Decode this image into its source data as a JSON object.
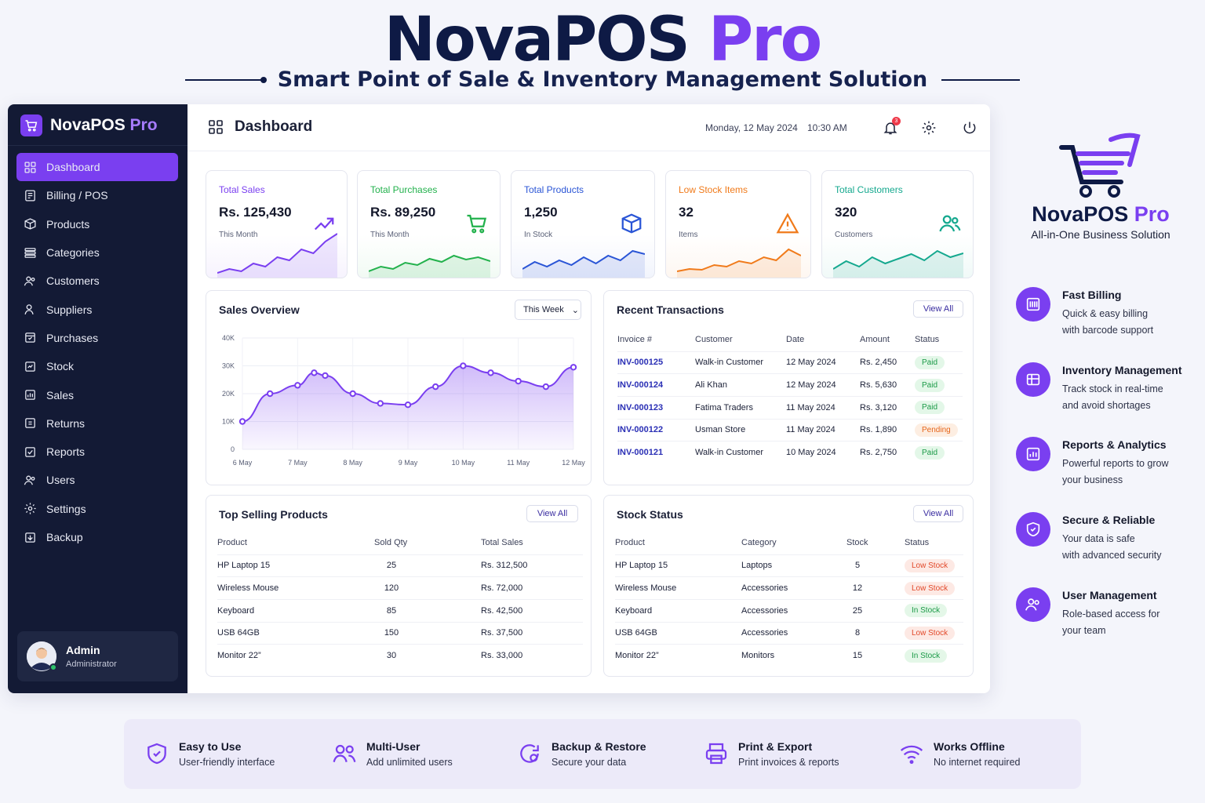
{
  "hero": {
    "title_main": "NovaPOS",
    "title_accent": "Pro",
    "subtitle": "Smart Point of Sale & Inventory Management Solution"
  },
  "sidebar": {
    "brand_main": "NovaPOS",
    "brand_accent": "Pro",
    "items": [
      {
        "label": "Dashboard",
        "icon": "dashboard-icon"
      },
      {
        "label": "Billing / POS",
        "icon": "billing-icon"
      },
      {
        "label": "Products",
        "icon": "box-icon"
      },
      {
        "label": "Categories",
        "icon": "categories-icon"
      },
      {
        "label": "Customers",
        "icon": "customers-icon"
      },
      {
        "label": "Suppliers",
        "icon": "suppliers-icon"
      },
      {
        "label": "Purchases",
        "icon": "purchases-icon"
      },
      {
        "label": "Stock",
        "icon": "stock-icon"
      },
      {
        "label": "Sales",
        "icon": "sales-icon"
      },
      {
        "label": "Returns",
        "icon": "returns-icon"
      },
      {
        "label": "Reports",
        "icon": "reports-icon"
      },
      {
        "label": "Users",
        "icon": "users-icon"
      },
      {
        "label": "Settings",
        "icon": "gear-icon"
      },
      {
        "label": "Backup",
        "icon": "backup-icon"
      }
    ],
    "user": {
      "name": "Admin",
      "role": "Administrator"
    }
  },
  "topbar": {
    "title": "Dashboard",
    "date": "Monday, 12 May 2024",
    "time": "10:30 AM",
    "notification_count": "3"
  },
  "kpis": [
    {
      "label": "Total Sales",
      "value": "Rs. 125,430",
      "caption": "This Month",
      "color": "#7a3ff0"
    },
    {
      "label": "Total Purchases",
      "value": "Rs. 89,250",
      "caption": "This Month",
      "color": "#22b14c"
    },
    {
      "label": "Total Products",
      "value": "1,250",
      "caption": "In Stock",
      "color": "#2a55d6"
    },
    {
      "label": "Low Stock Items",
      "value": "32",
      "caption": "Items",
      "color": "#f07a1a"
    },
    {
      "label": "Total Customers",
      "value": "320",
      "caption": "Customers",
      "color": "#14a88e"
    }
  ],
  "sales_overview": {
    "title": "Sales Overview",
    "range": "This Week"
  },
  "chart_data": {
    "type": "area",
    "title": "Sales Overview",
    "xlabel": "",
    "ylabel": "",
    "x_tick_labels": [
      "6 May",
      "7 May",
      "8 May",
      "9 May",
      "10 May",
      "11 May",
      "12 May"
    ],
    "y_tick_labels": [
      "40K",
      "30K",
      "20K",
      "10K",
      "0"
    ],
    "ylim": [
      0,
      40000
    ],
    "x": [
      6,
      6.5,
      7,
      7.3,
      7.5,
      8,
      8.5,
      9,
      9.5,
      10,
      10.5,
      11,
      11.5,
      12
    ],
    "values": [
      10000,
      20000,
      23000,
      27500,
      26500,
      20000,
      16500,
      16000,
      22500,
      30000,
      27500,
      24500,
      22500,
      29500
    ],
    "grid": true,
    "legend": "none",
    "color": "#7a3ff0"
  },
  "transactions": {
    "title": "Recent Transactions",
    "view_all": "View All",
    "columns": [
      "Invoice #",
      "Customer",
      "Date",
      "Amount",
      "Status"
    ],
    "rows": [
      {
        "invoice": "INV-000125",
        "customer": "Walk-in Customer",
        "date": "12 May 2024",
        "amount": "Rs. 2,450",
        "status": "Paid"
      },
      {
        "invoice": "INV-000124",
        "customer": "Ali Khan",
        "date": "12 May 2024",
        "amount": "Rs. 5,630",
        "status": "Paid"
      },
      {
        "invoice": "INV-000123",
        "customer": "Fatima Traders",
        "date": "11 May 2024",
        "amount": "Rs. 3,120",
        "status": "Paid"
      },
      {
        "invoice": "INV-000122",
        "customer": "Usman Store",
        "date": "11 May 2024",
        "amount": "Rs. 1,890",
        "status": "Pending"
      },
      {
        "invoice": "INV-000121",
        "customer": "Walk-in Customer",
        "date": "10 May 2024",
        "amount": "Rs. 2,750",
        "status": "Paid"
      }
    ]
  },
  "top_products": {
    "title": "Top Selling Products",
    "view_all": "View All",
    "columns": [
      "Product",
      "Sold Qty",
      "Total Sales"
    ],
    "rows": [
      {
        "product": "HP Laptop 15",
        "qty": "25",
        "total": "Rs. 312,500"
      },
      {
        "product": "Wireless Mouse",
        "qty": "120",
        "total": "Rs. 72,000"
      },
      {
        "product": "Keyboard",
        "qty": "85",
        "total": "Rs. 42,500"
      },
      {
        "product": "USB 64GB",
        "qty": "150",
        "total": "Rs. 37,500"
      },
      {
        "product": "Monitor 22”",
        "qty": "30",
        "total": "Rs. 33,000"
      }
    ]
  },
  "stock_status": {
    "title": "Stock Status",
    "view_all": "View All",
    "columns": [
      "Product",
      "Category",
      "Stock",
      "Status"
    ],
    "rows": [
      {
        "product": "HP Laptop 15",
        "category": "Laptops",
        "stock": "5",
        "status": "Low Stock"
      },
      {
        "product": "Wireless Mouse",
        "category": "Accessories",
        "stock": "12",
        "status": "Low Stock"
      },
      {
        "product": "Keyboard",
        "category": "Accessories",
        "stock": "25",
        "status": "In Stock"
      },
      {
        "product": "USB 64GB",
        "category": "Accessories",
        "stock": "8",
        "status": "Low Stock"
      },
      {
        "product": "Monitor 22”",
        "category": "Monitors",
        "stock": "15",
        "status": "In Stock"
      }
    ]
  },
  "promo": {
    "brand_main": "NovaPOS",
    "brand_accent": "Pro",
    "tagline": "All-in-One Business Solution",
    "features": [
      {
        "title": "Fast Billing",
        "line1": "Quick & easy billing",
        "line2": "with barcode support",
        "icon": "barcode-icon"
      },
      {
        "title": "Inventory Management",
        "line1": "Track stock in real-time",
        "line2": "and avoid shortages",
        "icon": "inventory-icon"
      },
      {
        "title": "Reports & Analytics",
        "line1": "Powerful reports to grow",
        "line2": "your business",
        "icon": "chart-icon"
      },
      {
        "title": "Secure & Reliable",
        "line1": "Your data is safe",
        "line2": "with advanced security",
        "icon": "shield-icon"
      },
      {
        "title": "User Management",
        "line1": "Role-based access for",
        "line2": "your team",
        "icon": "users-icon"
      }
    ]
  },
  "bottom_features": [
    {
      "title": "Easy to Use",
      "desc": "User-friendly interface",
      "icon": "shield-check-icon"
    },
    {
      "title": "Multi-User",
      "desc": "Add unlimited users",
      "icon": "multi-user-icon"
    },
    {
      "title": "Backup & Restore",
      "desc": "Secure your data",
      "icon": "backup-restore-icon"
    },
    {
      "title": "Print & Export",
      "desc": "Print invoices & reports",
      "icon": "printer-icon"
    },
    {
      "title": "Works Offline",
      "desc": "No internet required",
      "icon": "wifi-offline-icon"
    }
  ]
}
